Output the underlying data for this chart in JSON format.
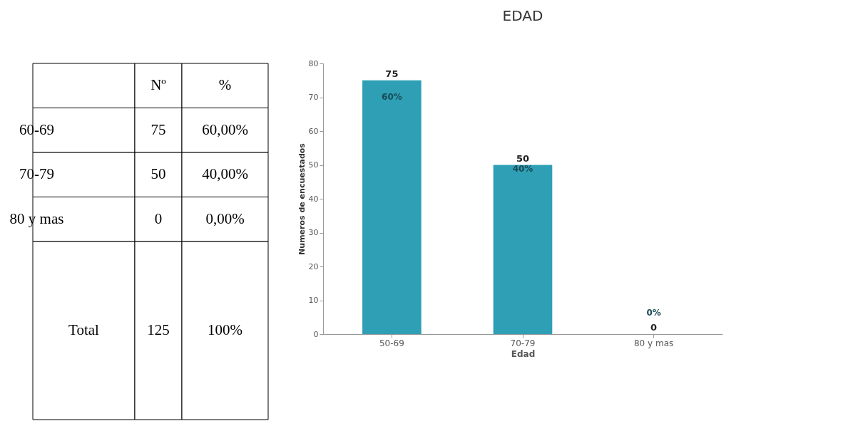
{
  "chart_data": [
    {
      "type": "other",
      "categories": [
        "60-69",
        "70-79",
        "80 y mas",
        "Total"
      ],
      "series": [
        {
          "name": "Nº",
          "values": [
            75,
            50,
            0,
            125
          ]
        },
        {
          "name": "%",
          "values": [
            60,
            40,
            0,
            100
          ],
          "value_labels": [
            "60,00%",
            "40,00%",
            "0,00%",
            "100%"
          ]
        }
      ],
      "data_labels": true
    },
    {
      "type": "bar",
      "title": "EDAD",
      "xlabel": "Edad",
      "ylabel": "Numeros de encuestados",
      "categories": [
        "50-69",
        "70-79",
        "80 y mas"
      ],
      "values": [
        75,
        50,
        0
      ],
      "color": "#2e9fb5",
      "ylim": [
        0,
        80
      ],
      "yticks": [
        0,
        10,
        20,
        30,
        40,
        50,
        60,
        70,
        80
      ],
      "grid": false,
      "data_labels": true,
      "annotations": [
        "60%",
        "40%",
        "0%"
      ]
    }
  ]
}
